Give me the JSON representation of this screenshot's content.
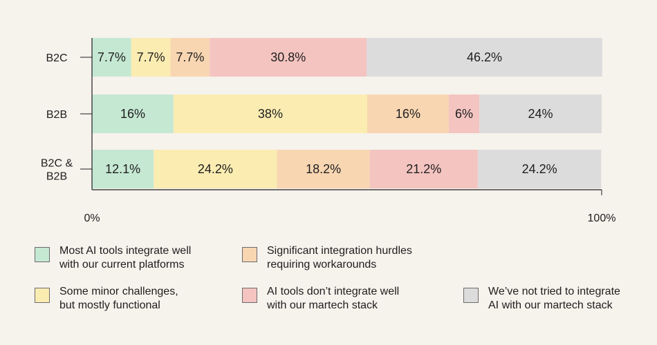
{
  "chart_data": {
    "type": "bar",
    "orientation": "horizontal",
    "stacked": true,
    "categories": [
      "B2C",
      "B2B",
      "B2C &\nB2B"
    ],
    "series": [
      {
        "name": "Most AI tools integrate well\nwith our current platforms",
        "color": "#c5e8d2",
        "values": [
          7.7,
          16,
          12.1
        ],
        "labels": [
          "7.7%",
          "16%",
          "12.1%"
        ]
      },
      {
        "name": "Some minor challenges,\nbut mostly functional",
        "color": "#fbecb2",
        "values": [
          7.7,
          38,
          24.2
        ],
        "labels": [
          "7.7%",
          "38%",
          "24.2%"
        ]
      },
      {
        "name": "Significant integration hurdles\nrequiring workarounds",
        "color": "#f8d6b2",
        "values": [
          7.7,
          16,
          18.2
        ],
        "labels": [
          "7.7%",
          "16%",
          "18.2%"
        ]
      },
      {
        "name": "AI tools don’t integrate well\nwith our martech stack",
        "color": "#f4c4c0",
        "values": [
          30.8,
          6,
          21.2
        ],
        "labels": [
          "30.8%",
          "6%",
          "21.2%"
        ]
      },
      {
        "name": "We’ve not tried to integrate\nAI with our martech stack",
        "color": "#dcdcdc",
        "values": [
          46.2,
          24,
          24.2
        ],
        "labels": [
          "46.2%",
          "24%",
          "24.2%"
        ]
      }
    ],
    "xlim": [
      0,
      100
    ],
    "x_tick_labels": [
      "0%",
      "100%"
    ],
    "grid": false,
    "legend_position": "bottom"
  }
}
